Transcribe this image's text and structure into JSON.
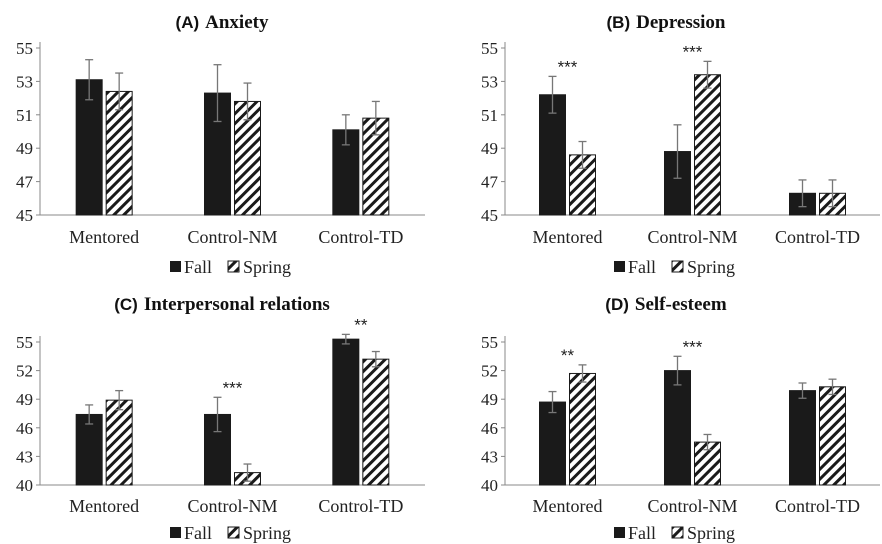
{
  "chart_data": [
    {
      "type": "bar",
      "title_letter": "(A)",
      "title": "Anxiety",
      "categories": [
        "Mentored",
        "Control-NM",
        "Control-TD"
      ],
      "series": [
        {
          "name": "Fall",
          "values": [
            53.1,
            52.3,
            50.1
          ],
          "errors": [
            1.2,
            1.7,
            0.9
          ]
        },
        {
          "name": "Spring",
          "values": [
            52.4,
            51.8,
            50.8
          ],
          "errors": [
            1.1,
            1.1,
            1.0
          ]
        }
      ],
      "significance": [
        {
          "category": 0,
          "label": ""
        },
        {
          "category": 1,
          "label": ""
        },
        {
          "category": 2,
          "label": ""
        }
      ],
      "ylim": [
        45,
        55
      ],
      "yticks": [
        "45",
        "47",
        "49",
        "51",
        "53",
        "55"
      ],
      "legend": "bottom",
      "grid": false
    },
    {
      "type": "bar",
      "title_letter": "(B)",
      "title": "Depression",
      "categories": [
        "Mentored",
        "Control-NM",
        "Control-TD"
      ],
      "series": [
        {
          "name": "Fall",
          "values": [
            52.2,
            48.8,
            46.3
          ],
          "errors": [
            1.1,
            1.6,
            0.8
          ]
        },
        {
          "name": "Spring",
          "values": [
            48.6,
            53.4,
            46.3
          ],
          "errors": [
            0.8,
            0.8,
            0.8
          ]
        }
      ],
      "significance": [
        {
          "category": 0,
          "label": "***"
        },
        {
          "category": 1,
          "label": "***"
        },
        {
          "category": 2,
          "label": ""
        }
      ],
      "ylim": [
        45,
        55
      ],
      "yticks": [
        "45",
        "47",
        "49",
        "51",
        "53",
        "55"
      ],
      "legend": "bottom",
      "grid": false
    },
    {
      "type": "bar",
      "title_letter": "(C)",
      "title": "Interpersonal relations",
      "categories": [
        "Mentored",
        "Control-NM",
        "Control-TD"
      ],
      "series": [
        {
          "name": "Fall",
          "values": [
            47.4,
            47.4,
            55.3
          ],
          "errors": [
            1.0,
            1.8,
            0.5
          ]
        },
        {
          "name": "Spring",
          "values": [
            48.9,
            41.3,
            53.2
          ],
          "errors": [
            1.0,
            0.9,
            0.8
          ]
        }
      ],
      "significance": [
        {
          "category": 0,
          "label": ""
        },
        {
          "category": 1,
          "label": "***"
        },
        {
          "category": 2,
          "label": "**"
        }
      ],
      "ylim": [
        40,
        55
      ],
      "yticks": [
        "40",
        "43",
        "46",
        "49",
        "52",
        "55"
      ],
      "legend": "bottom",
      "grid": false
    },
    {
      "type": "bar",
      "title_letter": "(D)",
      "title": "Self-esteem",
      "categories": [
        "Mentored",
        "Control-NM",
        "Control-TD"
      ],
      "series": [
        {
          "name": "Fall",
          "values": [
            48.7,
            52.0,
            49.9
          ],
          "errors": [
            1.1,
            1.5,
            0.8
          ]
        },
        {
          "name": "Spring",
          "values": [
            51.7,
            44.5,
            50.3
          ],
          "errors": [
            0.9,
            0.8,
            0.8
          ]
        }
      ],
      "significance": [
        {
          "category": 0,
          "label": "**"
        },
        {
          "category": 1,
          "label": "***"
        },
        {
          "category": 2,
          "label": ""
        }
      ],
      "ylim": [
        40,
        55
      ],
      "yticks": [
        "40",
        "43",
        "46",
        "49",
        "52",
        "55"
      ],
      "legend": "bottom",
      "grid": false
    }
  ]
}
